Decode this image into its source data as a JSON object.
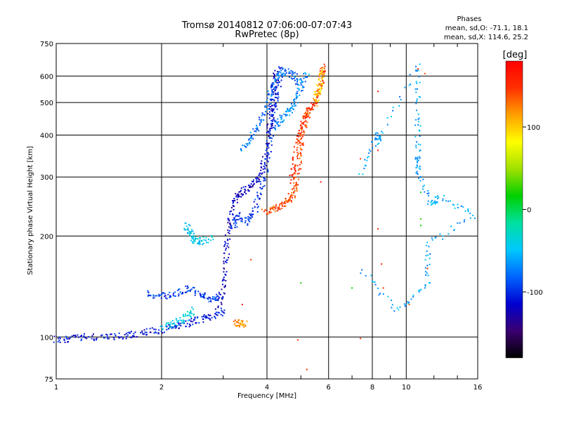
{
  "chart_data": {
    "type": "scatter",
    "title": "Tromsø 20140812 07:06:00-07:07:43",
    "subtitle": "RwPretec (8p)",
    "xlabel": "Frequency [MHz]",
    "ylabel": "Stationary phase Virtual Height [km]",
    "xscale": "log",
    "yscale": "log",
    "xlim": [
      1,
      16
    ],
    "ylim": [
      75,
      750
    ],
    "xticks": [
      1,
      2,
      4,
      6,
      8,
      10,
      16
    ],
    "yticks": [
      75,
      100,
      200,
      300,
      400,
      500,
      600,
      750
    ],
    "grid": true,
    "legend_box": {
      "title": "Phases",
      "line1": "mean, sd,O: -71.1, 18.1",
      "line2": "mean, sd,X: 114.6, 25.2"
    },
    "colorbar": {
      "label": "[deg]",
      "range": [
        -180,
        180
      ],
      "ticks": [
        100,
        0,
        -100
      ],
      "colors": [
        "#000000",
        "#3a0070",
        "#0000d0",
        "#0064ff",
        "#00c8ff",
        "#00e0a0",
        "#00d000",
        "#a0e000",
        "#ffff00",
        "#ffa000",
        "#ff3000",
        "#ff0000"
      ]
    },
    "traces": [
      {
        "name": "",
        "phase": -110,
        "points": [
          [
            1.0,
            98
          ],
          [
            1.1,
            99
          ],
          [
            1.25,
            100
          ],
          [
            1.45,
            100
          ],
          [
            1.6,
            101
          ],
          [
            1.8,
            103
          ],
          [
            2.0,
            105
          ],
          [
            2.2,
            108
          ],
          [
            2.4,
            110
          ],
          [
            2.6,
            113
          ],
          [
            2.8,
            116
          ],
          [
            3.0,
            118
          ]
        ]
      },
      {
        "name": "",
        "phase": -95,
        "points": [
          [
            1.8,
            135
          ],
          [
            2.0,
            132
          ],
          [
            2.2,
            134
          ],
          [
            2.4,
            140
          ],
          [
            2.6,
            133
          ],
          [
            2.8,
            128
          ],
          [
            3.0,
            135
          ]
        ]
      },
      {
        "name": "",
        "phase": -40,
        "points": [
          [
            2.0,
            107
          ],
          [
            2.2,
            110
          ],
          [
            2.35,
            115
          ],
          [
            2.45,
            120
          ]
        ]
      },
      {
        "name": "",
        "phase": -45,
        "points": [
          [
            2.35,
            215
          ],
          [
            2.42,
            205
          ],
          [
            2.48,
            195
          ],
          [
            2.6,
            193
          ],
          [
            2.8,
            197
          ]
        ]
      },
      {
        "name": "",
        "phase": -120,
        "points": [
          [
            2.9,
            120
          ],
          [
            3.0,
            140
          ],
          [
            3.05,
            170
          ],
          [
            3.1,
            200
          ],
          [
            3.15,
            230
          ],
          [
            3.25,
            260
          ],
          [
            3.4,
            270
          ],
          [
            3.6,
            280
          ],
          [
            3.8,
            300
          ],
          [
            3.95,
            340
          ],
          [
            4.05,
            400
          ],
          [
            4.1,
            450
          ],
          [
            4.15,
            500
          ],
          [
            4.2,
            560
          ],
          [
            4.25,
            630
          ]
        ]
      },
      {
        "name": "",
        "phase": -100,
        "points": [
          [
            3.2,
            210
          ],
          [
            3.3,
            230
          ],
          [
            3.5,
            220
          ],
          [
            3.7,
            240
          ],
          [
            3.85,
            280
          ],
          [
            4.0,
            330
          ],
          [
            4.1,
            400
          ],
          [
            4.2,
            480
          ],
          [
            4.3,
            560
          ],
          [
            4.4,
            640
          ]
        ]
      },
      {
        "name": "",
        "phase": -80,
        "points": [
          [
            3.4,
            360
          ],
          [
            3.6,
            390
          ],
          [
            3.8,
            430
          ],
          [
            4.0,
            480
          ],
          [
            4.1,
            540
          ],
          [
            4.3,
            600
          ],
          [
            4.5,
            620
          ],
          [
            4.8,
            600
          ],
          [
            5.0,
            560
          ]
        ]
      },
      {
        "name": "",
        "phase": -70,
        "points": [
          [
            4.2,
            420
          ],
          [
            4.4,
            450
          ],
          [
            4.6,
            470
          ],
          [
            4.8,
            500
          ],
          [
            5.0,
            550
          ],
          [
            5.2,
            620
          ]
        ]
      },
      {
        "name": "",
        "phase": 140,
        "points": [
          [
            3.9,
            235
          ],
          [
            4.2,
            240
          ],
          [
            4.4,
            248
          ],
          [
            4.6,
            255
          ],
          [
            4.75,
            265
          ],
          [
            4.85,
            290
          ],
          [
            4.95,
            340
          ],
          [
            5.05,
            400
          ],
          [
            5.15,
            450
          ],
          [
            5.3,
            480
          ]
        ]
      },
      {
        "name": "",
        "phase": 150,
        "points": [
          [
            4.7,
            290
          ],
          [
            4.8,
            330
          ],
          [
            4.9,
            380
          ],
          [
            5.0,
            420
          ],
          [
            5.2,
            460
          ],
          [
            5.4,
            490
          ],
          [
            5.6,
            520
          ],
          [
            5.75,
            600
          ],
          [
            5.8,
            640
          ]
        ]
      },
      {
        "name": "",
        "phase": 100,
        "points": [
          [
            5.5,
            500
          ],
          [
            5.6,
            540
          ],
          [
            5.7,
            580
          ],
          [
            5.75,
            630
          ]
        ]
      },
      {
        "name": "",
        "phase": 120,
        "points": [
          [
            3.25,
            110
          ],
          [
            3.35,
            110
          ],
          [
            3.45,
            109
          ]
        ]
      },
      {
        "name": "",
        "phase": -60,
        "points": [
          [
            7.4,
            305
          ],
          [
            8.3,
            405
          ],
          [
            8.3,
            380
          ],
          [
            10.8,
            650
          ],
          [
            10.8,
            460
          ],
          [
            10.8,
            350
          ],
          [
            10.8,
            310
          ],
          [
            11.8,
            250
          ],
          [
            12.5,
            260
          ],
          [
            15.5,
            230
          ],
          [
            11.5,
            190
          ],
          [
            11.5,
            143
          ],
          [
            9.4,
            120
          ],
          [
            7.4,
            160
          ]
        ]
      },
      {
        "name": "",
        "phase": 150,
        "points": [
          [
            8.3,
            540
          ],
          [
            8.3,
            360
          ],
          [
            10.8,
            630
          ],
          [
            11.3,
            610
          ],
          [
            7.4,
            340
          ],
          [
            5.7,
            290
          ],
          [
            3.6,
            170
          ],
          [
            3.4,
            125
          ],
          [
            4.9,
            98
          ],
          [
            5.2,
            80
          ],
          [
            7.4,
            99
          ],
          [
            8.3,
            210
          ],
          [
            8.5,
            165
          ],
          [
            8.6,
            140
          ],
          [
            10.2,
            125
          ],
          [
            11.5,
            160
          ]
        ]
      },
      {
        "name": "",
        "phase": 20,
        "points": [
          [
            7.0,
            140
          ],
          [
            5.0,
            145
          ],
          [
            11.0,
            270
          ],
          [
            11.0,
            225
          ],
          [
            11.0,
            215
          ]
        ]
      }
    ]
  }
}
